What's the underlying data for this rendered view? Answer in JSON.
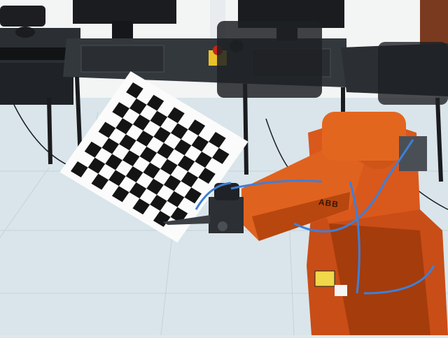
{
  "scene": {
    "description_label": "lab-robot-checkerboard-calibration",
    "brand_text": "ABB",
    "colors": {
      "wall": "#f3f4f4",
      "floor": "#d9e5ea",
      "desk_top": "#2b2f33",
      "desk_leg": "#1a1c1f",
      "robot": "#d9581c",
      "robot_dark": "#a53c0c",
      "cable": "#3f7fd6",
      "board_light": "#fbfbfb",
      "board_dark": "#141414",
      "estop_yellow": "#e8c22a",
      "estop_red": "#c8261c"
    },
    "checkerboard": {
      "rows": 9,
      "cols": 10
    }
  }
}
